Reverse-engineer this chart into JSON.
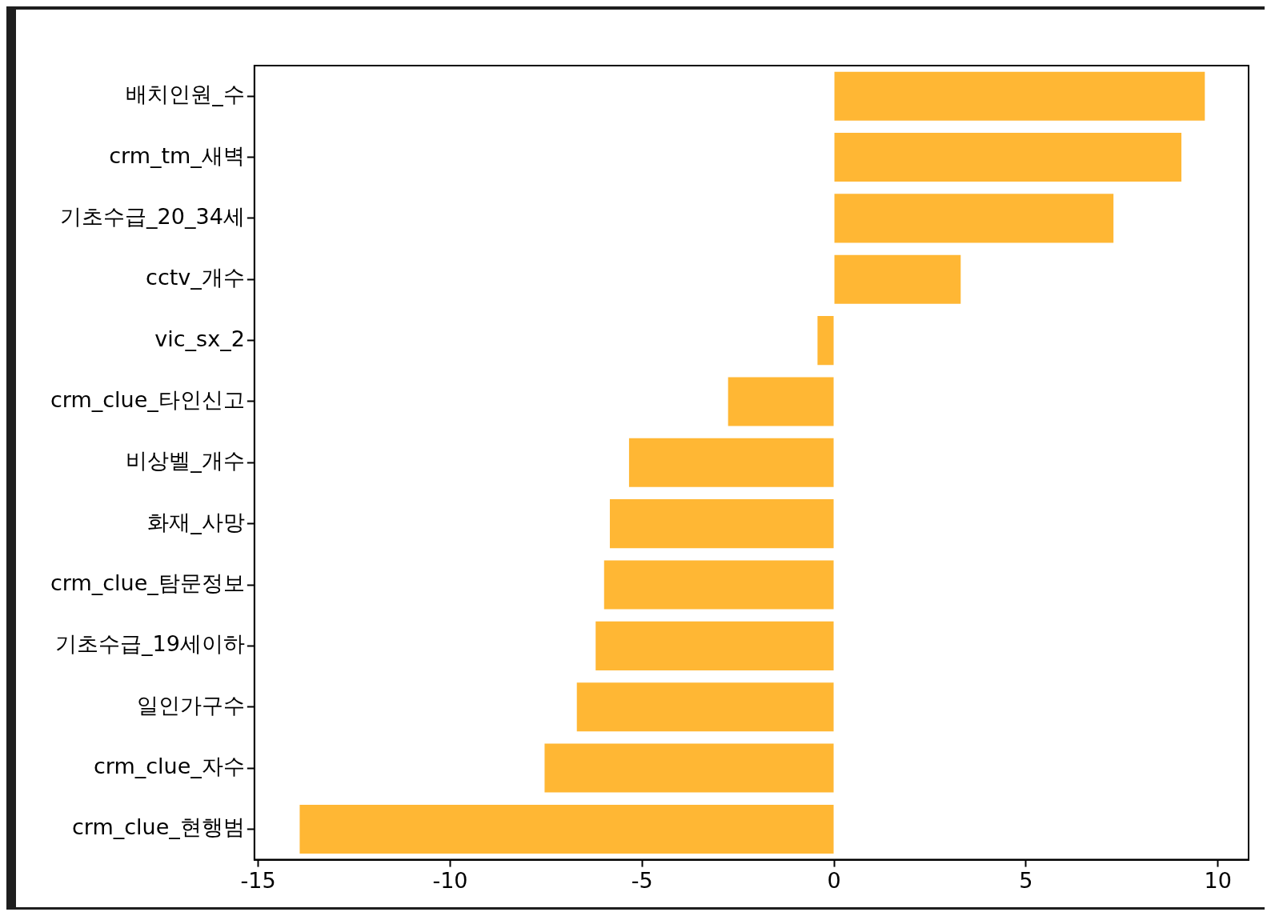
{
  "chart_data": {
    "type": "bar",
    "orientation": "horizontal",
    "categories": [
      "배치인원_수",
      "crm_tm_새벽",
      "기초수급_20_34세",
      "cctv_개수",
      "vic_sx_2",
      "crm_clue_타인신고",
      "비상벨_개수",
      "화재_사망",
      "crm_clue_탐문정보",
      "기초수급_19세이하",
      "일인가구수",
      "crm_clue_자수",
      "crm_clue_현행범"
    ],
    "values": [
      9.66,
      9.05,
      7.28,
      3.3,
      -0.43,
      -2.76,
      -5.34,
      -5.84,
      -5.99,
      -6.21,
      -6.7,
      -7.54,
      -13.92
    ],
    "color": "#ffb734",
    "xlim": [
      -15.1,
      10.8
    ],
    "xticks": [
      -15,
      -10,
      -5,
      0,
      5,
      10
    ],
    "grid": false,
    "legend": false
  }
}
